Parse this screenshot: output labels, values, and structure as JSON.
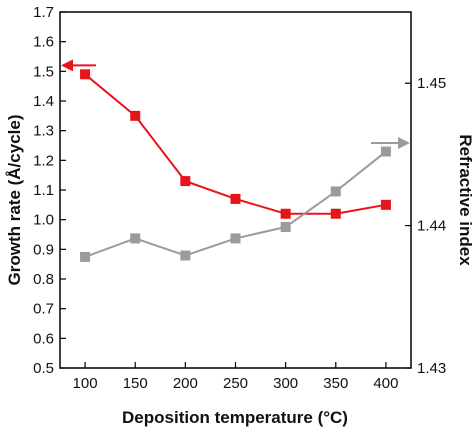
{
  "chart_data": {
    "type": "line",
    "x": [
      100,
      150,
      200,
      250,
      300,
      350,
      400
    ],
    "xlabel": "Deposition temperature (°C)",
    "ylabel_left": "Growth rate (Å/cycle)",
    "ylabel_right": "Refractive index",
    "xlim": [
      75,
      425
    ],
    "ylim_left": [
      0.5,
      1.7
    ],
    "ylim_right": [
      1.43,
      1.455
    ],
    "x_ticks": [
      100,
      150,
      200,
      250,
      300,
      350,
      400
    ],
    "x_tick_labels": [
      "100",
      "150",
      "200",
      "250",
      "300",
      "350",
      "400"
    ],
    "yleft_ticks": [
      0.5,
      0.6,
      0.7,
      0.8,
      0.9,
      1.0,
      1.1,
      1.2,
      1.3,
      1.4,
      1.5,
      1.6,
      1.7
    ],
    "yleft_tick_labels": [
      "0.5",
      "0.6",
      "0.7",
      "0.8",
      "0.9",
      "1.0",
      "1.1",
      "1.2",
      "1.3",
      "1.4",
      "1.5",
      "1.6",
      "1.7"
    ],
    "yright_ticks": [
      1.43,
      1.44,
      1.45
    ],
    "yright_tick_labels": [
      "1.43",
      "1.44",
      "1.45"
    ],
    "grid": false,
    "series": [
      {
        "axis": "left",
        "color": "#e8141c",
        "marker": "square",
        "values": [
          1.49,
          1.35,
          1.13,
          1.07,
          1.02,
          1.02,
          1.05
        ]
      },
      {
        "axis": "right",
        "color": "#9b9b9b",
        "marker": "square",
        "values": [
          1.4378,
          1.4391,
          1.4379,
          1.4391,
          1.4399,
          1.4424,
          1.4452
        ]
      }
    ],
    "annotations": [
      {
        "type": "arrow",
        "direction": "left",
        "points_to_axis": "left",
        "color": "#e8141c"
      },
      {
        "type": "arrow",
        "direction": "right",
        "points_to_axis": "right",
        "color": "#9b9b9b"
      }
    ]
  }
}
